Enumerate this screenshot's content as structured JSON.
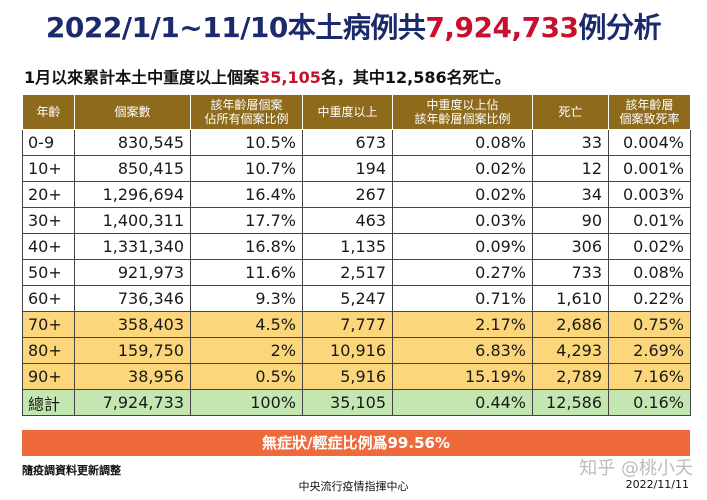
{
  "title": {
    "prefix": "2022/1/1~11/10本土病例共",
    "highlight": "7,924,733",
    "suffix": "例分析"
  },
  "subtitle": {
    "prefix": "1月以來累計本土中重度以上個案",
    "highlight": "35,105",
    "suffix": "名，其中12,586名死亡。"
  },
  "table": {
    "headers": [
      "年齡",
      "個案數",
      "該年齡層個案\n佔所有個案比例",
      "中重度以上",
      "中重度以上佔\n該年齡層個案比例",
      "死亡",
      "該年齡層\n個案致死率"
    ],
    "rows": [
      {
        "group": "normal",
        "cells": [
          "0-9",
          "830,545",
          "10.5%",
          "673",
          "0.08%",
          "33",
          "0.004%"
        ]
      },
      {
        "group": "normal",
        "cells": [
          "10+",
          "850,415",
          "10.7%",
          "194",
          "0.02%",
          "12",
          "0.001%"
        ]
      },
      {
        "group": "normal",
        "cells": [
          "20+",
          "1,296,694",
          "16.4%",
          "267",
          "0.02%",
          "34",
          "0.003%"
        ]
      },
      {
        "group": "normal",
        "cells": [
          "30+",
          "1,400,311",
          "17.7%",
          "463",
          "0.03%",
          "90",
          "0.01%"
        ]
      },
      {
        "group": "normal",
        "cells": [
          "40+",
          "1,331,340",
          "16.8%",
          "1,135",
          "0.09%",
          "306",
          "0.02%"
        ]
      },
      {
        "group": "normal",
        "cells": [
          "50+",
          "921,973",
          "11.6%",
          "2,517",
          "0.27%",
          "733",
          "0.08%"
        ]
      },
      {
        "group": "normal",
        "cells": [
          "60+",
          "736,346",
          "9.3%",
          "5,247",
          "0.71%",
          "1,610",
          "0.22%"
        ]
      },
      {
        "group": "high",
        "cells": [
          "70+",
          "358,403",
          "4.5%",
          "7,777",
          "2.17%",
          "2,686",
          "0.75%"
        ]
      },
      {
        "group": "high",
        "cells": [
          "80+",
          "159,750",
          "2%",
          "10,916",
          "6.83%",
          "4,293",
          "2.69%"
        ]
      },
      {
        "group": "high",
        "cells": [
          "90+",
          "38,956",
          "0.5%",
          "5,916",
          "15.19%",
          "2,789",
          "7.16%"
        ]
      },
      {
        "group": "total",
        "cells": [
          "總計",
          "7,924,733",
          "100%",
          "35,105",
          "0.44%",
          "12,586",
          "0.16%"
        ]
      }
    ]
  },
  "asymptomatic": "無症狀/輕症比例爲99.56%",
  "footer": {
    "note": "隨疫調資料更新調整",
    "center": "中央流行疫情指揮中心",
    "date": "2022/11/11",
    "watermark": "知乎 @桃小夭"
  },
  "colors": {
    "title": "#1a2a6c",
    "highlight": "#c8102e",
    "header_bg": "#8e6b1c",
    "high_row_bg": "#fbd67a",
    "total_row_bg": "#c4e7b2",
    "banner_bg": "#ef6a3a"
  }
}
